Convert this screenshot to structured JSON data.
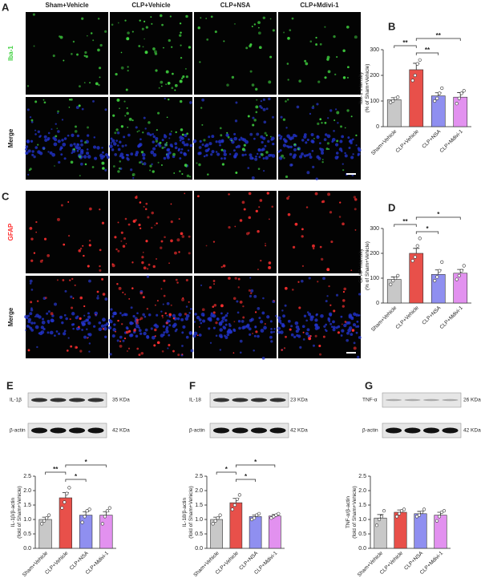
{
  "panel_labels": [
    "A",
    "B",
    "C",
    "D",
    "E",
    "F",
    "G"
  ],
  "column_headers": [
    "Sham+Vehicle",
    "CLP+Vehicle",
    "CLP+NSA",
    "CLP+Mdivi-1"
  ],
  "image_rows": [
    [
      "Iba-1",
      "Merge"
    ],
    [
      "GFAP",
      "Merge"
    ]
  ],
  "blots": [
    {
      "bands": [
        {
          "label": "IL-1β",
          "size": "35 KDa"
        },
        {
          "label": "β-actin",
          "size": "42 KDa"
        }
      ]
    },
    {
      "bands": [
        {
          "label": "IL-18",
          "size": "23 KDa"
        },
        {
          "label": "β-actin",
          "size": "42 KDa"
        }
      ]
    },
    {
      "bands": [
        {
          "label": "TNF-α",
          "size": "26 KDa"
        },
        {
          "label": "β-actin",
          "size": "42 KDa"
        }
      ]
    }
  ],
  "chart_data": [
    {
      "type": "bar",
      "ylabel": [
        "Iba-1 intensity",
        "(% of Sham+Vehicle)"
      ],
      "categories": [
        "Sham+Vehicle",
        "CLP+Vehicle",
        "CLP+NSA",
        "CLP+Mdivi-1"
      ],
      "values": [
        105,
        222,
        120,
        115
      ],
      "errors": [
        8,
        25,
        12,
        18
      ],
      "points": [
        [
          95,
          100,
          110,
          115
        ],
        [
          180,
          200,
          245,
          260
        ],
        [
          100,
          110,
          130,
          150
        ],
        [
          90,
          110,
          130,
          140
        ]
      ],
      "colors": [
        "#c8c8c8",
        "#e8504a",
        "#8f8ff0",
        "#e291ef"
      ],
      "ylim": [
        0,
        300
      ],
      "yticks": [
        0,
        100,
        200,
        300
      ],
      "annotations": [
        {
          "text": "**",
          "from": 1,
          "to": 3
        },
        {
          "text": "**",
          "from": 0,
          "to": 1
        },
        {
          "text": "**",
          "from": 1,
          "to": 2
        }
      ]
    },
    {
      "type": "bar",
      "ylabel": [
        "GFAP intensity",
        "(% of Sham+Vehicle)"
      ],
      "categories": [
        "Sham+Vehicle",
        "CLP+Vehicle",
        "CLP+NSA",
        "CLP+Mdivi-1"
      ],
      "values": [
        95,
        200,
        115,
        120
      ],
      "errors": [
        10,
        20,
        18,
        15
      ],
      "points": [
        [
          75,
          90,
          100,
          110
        ],
        [
          170,
          185,
          230,
          260
        ],
        [
          90,
          105,
          130,
          165
        ],
        [
          95,
          110,
          130,
          150
        ]
      ],
      "colors": [
        "#c8c8c8",
        "#e8504a",
        "#8f8ff0",
        "#e291ef"
      ],
      "ylim": [
        0,
        300
      ],
      "yticks": [
        0,
        100,
        200,
        300
      ],
      "annotations": [
        {
          "text": "*",
          "from": 1,
          "to": 3
        },
        {
          "text": "**",
          "from": 0,
          "to": 1
        },
        {
          "text": "*",
          "from": 1,
          "to": 2
        }
      ]
    },
    {
      "type": "bar",
      "ylabel": [
        "IL-1β/β-actin",
        "(fold of Sham+Vehicle)"
      ],
      "categories": [
        "Sham+Vehicle",
        "CLP+Vehicle",
        "CLP+NSA",
        "CLP+Mdivi-1"
      ],
      "values": [
        1.0,
        1.75,
        1.15,
        1.15
      ],
      "errors": [
        0.08,
        0.18,
        0.12,
        0.12
      ],
      "points": [
        [
          0.85,
          0.95,
          1.05,
          1.15
        ],
        [
          1.4,
          1.6,
          1.9,
          2.1
        ],
        [
          0.9,
          1.1,
          1.3,
          1.35
        ],
        [
          0.85,
          1.1,
          1.3,
          1.4
        ]
      ],
      "colors": [
        "#c8c8c8",
        "#e8504a",
        "#8f8ff0",
        "#e291ef"
      ],
      "ylim": [
        0,
        2.5
      ],
      "yticks": [
        {
          "value": 0,
          "label": "0.0"
        },
        0.5,
        {
          "value": 1,
          "label": "1.0"
        },
        1.5,
        {
          "value": 2,
          "label": "2.0"
        },
        2.5
      ],
      "annotations": [
        {
          "text": "*",
          "from": 1,
          "to": 3
        },
        {
          "text": "**",
          "from": 0,
          "to": 1
        },
        {
          "text": "*",
          "from": 1,
          "to": 2
        }
      ]
    },
    {
      "type": "bar",
      "ylabel": [
        "IL-18/β-actin",
        "(fold of Sham+Vehicle)"
      ],
      "categories": [
        "Sham+Vehicle",
        "CLP+Vehicle",
        "CLP+NSA",
        "CLP+Mdivi-1"
      ],
      "values": [
        1.0,
        1.58,
        1.1,
        1.12
      ],
      "errors": [
        0.08,
        0.15,
        0.05,
        0.05
      ],
      "points": [
        [
          0.85,
          0.95,
          1.05,
          1.15
        ],
        [
          1.35,
          1.5,
          1.7,
          1.85
        ],
        [
          1.0,
          1.05,
          1.15,
          1.2
        ],
        [
          1.05,
          1.1,
          1.15,
          1.2
        ]
      ],
      "colors": [
        "#c8c8c8",
        "#e8504a",
        "#8f8ff0",
        "#e291ef"
      ],
      "ylim": [
        0,
        2.5
      ],
      "yticks": [
        {
          "value": 0,
          "label": "0.0"
        },
        0.5,
        {
          "value": 1,
          "label": "1.0"
        },
        1.5,
        {
          "value": 2,
          "label": "2.0"
        },
        2.5
      ],
      "annotations": [
        {
          "text": "*",
          "from": 1,
          "to": 3
        },
        {
          "text": "*",
          "from": 0,
          "to": 1
        },
        {
          "text": "*",
          "from": 1,
          "to": 2
        }
      ]
    },
    {
      "type": "bar",
      "ylabel": [
        "TNF-α/β-actin",
        "(fold of Sham+Vehicle)"
      ],
      "categories": [
        "Sham+Vehicle",
        "CLP+Vehicle",
        "CLP+NSA",
        "CLP+Mdivi-1"
      ],
      "values": [
        1.05,
        1.25,
        1.2,
        1.15
      ],
      "errors": [
        0.12,
        0.08,
        0.08,
        0.1
      ],
      "points": [
        [
          0.8,
          1.0,
          1.1,
          1.3
        ],
        [
          1.1,
          1.2,
          1.3,
          1.35
        ],
        [
          1.1,
          1.15,
          1.25,
          1.35
        ],
        [
          0.95,
          1.1,
          1.25,
          1.3
        ]
      ],
      "colors": [
        "#c8c8c8",
        "#e8504a",
        "#8f8ff0",
        "#e291ef"
      ],
      "ylim": [
        0,
        2.5
      ],
      "yticks": [
        {
          "value": 0,
          "label": "0.0"
        },
        0.5,
        {
          "value": 1,
          "label": "1.0"
        },
        1.5,
        {
          "value": 2,
          "label": "2.0"
        },
        2.5
      ],
      "annotations": []
    }
  ]
}
